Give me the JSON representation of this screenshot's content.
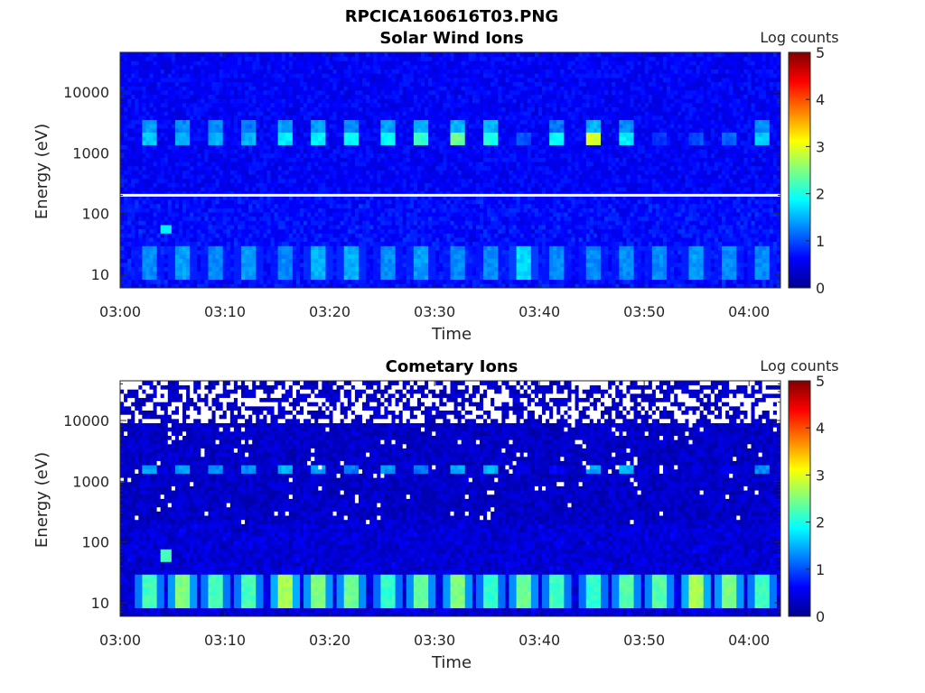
{
  "figure_title": "RPCICA160616T03.PNG",
  "colors": {
    "background_bins": "#0a14c8",
    "marker_line": "#ffffff",
    "colormap": "jet"
  },
  "chart_data": [
    {
      "type": "heatmap",
      "title": "Solar Wind Ions",
      "xlabel": "Time",
      "ylabel": "Energy (eV)",
      "y_scale": "log",
      "ylim": [
        6,
        45000
      ],
      "x_range_minutes": [
        0,
        63
      ],
      "xticks": [
        "03:00",
        "03:10",
        "03:20",
        "03:30",
        "03:40",
        "03:50",
        "04:00"
      ],
      "yticks": [
        "10",
        "100",
        "1000",
        "10000"
      ],
      "colorbar_label": "Log counts",
      "colorbar_ticks": [
        "0",
        "1",
        "2",
        "3",
        "4",
        "5"
      ],
      "clim": [
        0,
        5
      ],
      "background_level": 0.6,
      "horizontal_line_energy_eV": 200,
      "pulse_times_min": [
        2.7,
        6.0,
        9.2,
        12.4,
        15.8,
        19.0,
        22.2,
        25.6,
        28.8,
        32.2,
        35.4,
        38.6,
        41.8,
        45.0,
        48.4,
        51.6,
        54.8,
        58.0,
        61.2
      ],
      "bands": [
        {
          "name": "solar-wind-upper",
          "e_low": 2200,
          "e_high": 3700,
          "peaks": [
            1.4,
            1.3,
            1.3,
            1.2,
            1.4,
            1.4,
            1.3,
            1.4,
            1.5,
            1.5,
            1.5,
            0.5,
            1.2,
            1.5,
            1.3,
            0.4,
            0.4,
            0.4,
            1.3
          ]
        },
        {
          "name": "solar-wind-lower",
          "e_low": 1300,
          "e_high": 2100,
          "peaks": [
            1.6,
            1.5,
            1.5,
            1.5,
            1.8,
            1.8,
            1.9,
            1.9,
            2.1,
            2.4,
            2.0,
            1.0,
            1.9,
            2.9,
            1.8,
            0.9,
            1.0,
            1.1,
            1.6
          ]
        },
        {
          "name": "low-energy",
          "e_low": 8,
          "e_high": 30,
          "peaks": [
            1.3,
            1.4,
            1.3,
            1.4,
            1.3,
            1.5,
            1.5,
            1.3,
            1.4,
            1.3,
            1.3,
            1.7,
            1.3,
            1.3,
            1.3,
            1.3,
            1.4,
            1.3,
            1.3
          ]
        }
      ],
      "annotation_blobs": [
        {
          "t_min": 4.3,
          "energy_eV": 55,
          "level": 1.8
        }
      ]
    },
    {
      "type": "heatmap",
      "title": "Cometary Ions",
      "xlabel": "Time",
      "ylabel": "Energy (eV)",
      "y_scale": "log",
      "ylim": [
        6,
        45000
      ],
      "x_range_minutes": [
        0,
        63
      ],
      "xticks": [
        "03:00",
        "03:10",
        "03:20",
        "03:30",
        "03:40",
        "03:50",
        "04:00"
      ],
      "yticks": [
        "10",
        "100",
        "1000",
        "10000"
      ],
      "colorbar_label": "Log counts",
      "colorbar_ticks": [
        "0",
        "1",
        "2",
        "3",
        "4",
        "5"
      ],
      "clim": [
        0,
        5
      ],
      "background_level": 0.35,
      "empty_bins_above_energy_eV": 9000,
      "pulse_times_min": [
        2.7,
        6.0,
        9.2,
        12.4,
        15.8,
        19.0,
        22.2,
        25.6,
        28.8,
        32.2,
        35.4,
        38.6,
        41.8,
        45.0,
        48.4,
        51.6,
        54.8,
        58.0,
        61.2
      ],
      "bands": [
        {
          "name": "cometary-1keV",
          "e_low": 1300,
          "e_high": 1900,
          "peaks": [
            1.4,
            1.4,
            1.3,
            1.3,
            1.5,
            1.4,
            1.2,
            1.4,
            1.2,
            1.5,
            1.5,
            0.5,
            0.6,
            1.4,
            1.5,
            0.5,
            0.4,
            0.5,
            1.3
          ]
        },
        {
          "name": "low-energy",
          "e_low": 8,
          "e_high": 30,
          "peaks": [
            2.2,
            2.5,
            2.2,
            2.2,
            2.7,
            2.5,
            2.4,
            2.1,
            2.4,
            2.5,
            2.1,
            2.4,
            2.2,
            2.1,
            2.3,
            2.3,
            2.7,
            2.5,
            2.2
          ]
        }
      ],
      "annotation_blobs": [
        {
          "t_min": 4.3,
          "energy_eV": 60,
          "level": 2.2
        }
      ]
    }
  ]
}
